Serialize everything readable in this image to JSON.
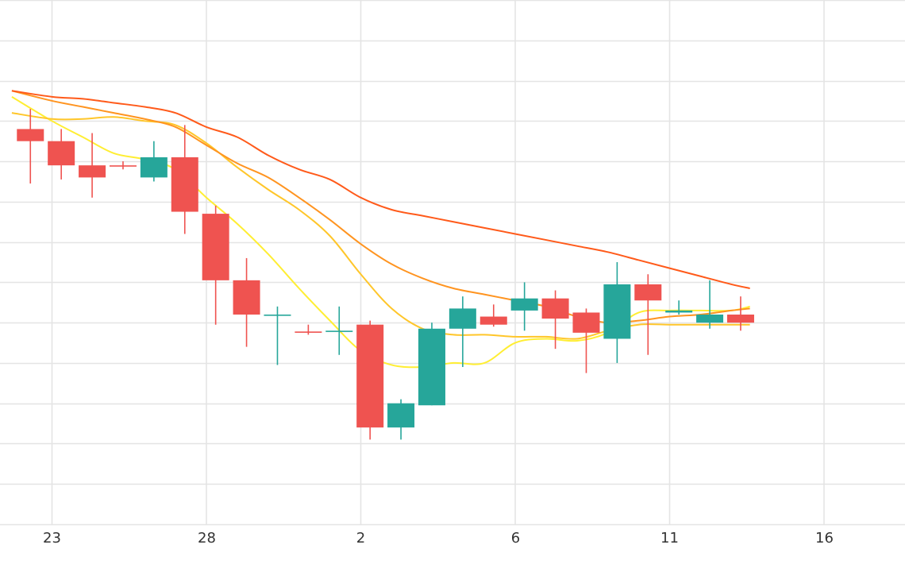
{
  "chart_data": {
    "type": "candlestick",
    "x_tick_labels": [
      "23",
      "28",
      "2",
      "6",
      "11",
      "16"
    ],
    "y_range": [
      0,
      13
    ],
    "grid": true,
    "colors": {
      "up": "#26a69a",
      "down": "#ef5350",
      "ma_lines": [
        "#ffee33",
        "#ffc62a",
        "#ff9420",
        "#ff5a1a"
      ]
    },
    "candles": [
      {
        "x": -0.7,
        "open": 9.8,
        "close": 9.5,
        "high": 10.3,
        "low": 8.45
      },
      {
        "x": 0.3,
        "open": 9.5,
        "close": 8.9,
        "high": 9.8,
        "low": 8.55
      },
      {
        "x": 1.3,
        "open": 8.9,
        "close": 8.6,
        "high": 9.7,
        "low": 8.1
      },
      {
        "x": 2.3,
        "open": 8.9,
        "close": 8.88,
        "high": 9.0,
        "low": 8.8
      },
      {
        "x": 3.3,
        "open": 8.6,
        "close": 9.1,
        "high": 9.5,
        "low": 8.5
      },
      {
        "x": 4.3,
        "open": 9.1,
        "close": 7.75,
        "high": 9.9,
        "low": 7.2
      },
      {
        "x": 5.3,
        "open": 7.7,
        "close": 6.05,
        "high": 7.9,
        "low": 4.95
      },
      {
        "x": 6.3,
        "open": 6.05,
        "close": 5.2,
        "high": 6.6,
        "low": 4.4
      },
      {
        "x": 7.3,
        "open": 5.2,
        "close": 5.2,
        "high": 5.4,
        "low": 3.95
      },
      {
        "x": 8.3,
        "open": 4.78,
        "close": 4.77,
        "high": 4.95,
        "low": 4.7
      },
      {
        "x": 9.3,
        "open": 4.8,
        "close": 4.8,
        "high": 5.4,
        "low": 4.2
      },
      {
        "x": 10.3,
        "open": 4.95,
        "close": 2.4,
        "high": 5.05,
        "low": 2.1
      },
      {
        "x": 11.3,
        "open": 2.4,
        "close": 3.0,
        "high": 3.1,
        "low": 2.1
      },
      {
        "x": 12.3,
        "open": 2.95,
        "close": 4.85,
        "high": 5.0,
        "low": 2.95
      },
      {
        "x": 13.3,
        "open": 4.85,
        "close": 5.35,
        "high": 5.65,
        "low": 3.9
      },
      {
        "x": 14.3,
        "open": 5.15,
        "close": 4.95,
        "high": 5.45,
        "low": 4.9
      },
      {
        "x": 15.3,
        "open": 5.3,
        "close": 5.6,
        "high": 6.0,
        "low": 4.8
      },
      {
        "x": 16.3,
        "open": 5.6,
        "close": 5.1,
        "high": 5.8,
        "low": 4.35
      },
      {
        "x": 17.3,
        "open": 5.25,
        "close": 4.75,
        "high": 5.35,
        "low": 3.75
      },
      {
        "x": 18.3,
        "open": 4.6,
        "close": 5.95,
        "high": 6.5,
        "low": 4.0
      },
      {
        "x": 19.3,
        "open": 5.95,
        "close": 5.55,
        "high": 6.2,
        "low": 4.2
      },
      {
        "x": 20.3,
        "open": 5.25,
        "close": 5.3,
        "high": 5.55,
        "low": 5.2
      },
      {
        "x": 21.3,
        "open": 5.0,
        "close": 5.2,
        "high": 6.05,
        "low": 4.85
      },
      {
        "x": 22.3,
        "open": 5.2,
        "close": 5.0,
        "high": 5.65,
        "low": 4.8
      }
    ],
    "series": [
      {
        "x": [
          -1.3,
          0,
          1,
          2,
          3,
          4,
          5,
          6,
          7,
          8,
          9,
          10,
          11,
          12,
          13,
          14,
          15,
          16,
          17,
          18,
          19,
          20,
          21,
          22,
          22.6
        ],
        "values": [
          10.6,
          10.0,
          9.6,
          9.2,
          9.05,
          8.8,
          8.1,
          7.45,
          6.7,
          5.85,
          5.05,
          4.3,
          3.95,
          3.9,
          4.0,
          4.0,
          4.5,
          4.6,
          4.55,
          4.75,
          5.25,
          5.3,
          5.3,
          5.3,
          5.4
        ]
      },
      {
        "x": [
          -1.3,
          0,
          1,
          2,
          3,
          4,
          5,
          6,
          7,
          8,
          9,
          10,
          11,
          12,
          13,
          14,
          15,
          16,
          17,
          18,
          19,
          20,
          21,
          22,
          22.6
        ],
        "values": [
          10.2,
          10.05,
          10.05,
          10.1,
          10.0,
          9.9,
          9.45,
          8.85,
          8.3,
          7.8,
          7.15,
          6.2,
          5.35,
          4.85,
          4.7,
          4.7,
          4.65,
          4.65,
          4.6,
          4.8,
          4.95,
          4.95,
          4.95,
          4.95,
          4.95
        ]
      },
      {
        "x": [
          -1.3,
          0,
          1,
          2,
          3,
          4,
          5,
          6,
          7,
          8,
          9,
          10,
          11,
          12,
          13,
          14,
          15,
          16,
          17,
          18,
          19,
          20,
          21,
          22,
          22.6
        ],
        "values": [
          10.75,
          10.5,
          10.35,
          10.2,
          10.05,
          9.85,
          9.4,
          8.95,
          8.6,
          8.1,
          7.55,
          6.95,
          6.45,
          6.1,
          5.85,
          5.7,
          5.55,
          5.4,
          5.15,
          5.0,
          5.05,
          5.15,
          5.2,
          5.3,
          5.35
        ]
      },
      {
        "x": [
          -1.3,
          0,
          1,
          2,
          3,
          4,
          5,
          6,
          7,
          8,
          9,
          10,
          11,
          12,
          13,
          14,
          15,
          16,
          17,
          18,
          19,
          20,
          21,
          22,
          22.6
        ],
        "values": [
          10.75,
          10.6,
          10.55,
          10.45,
          10.35,
          10.2,
          9.85,
          9.6,
          9.15,
          8.8,
          8.55,
          8.1,
          7.8,
          7.65,
          7.5,
          7.35,
          7.2,
          7.05,
          6.9,
          6.75,
          6.55,
          6.35,
          6.15,
          5.95,
          5.85
        ]
      }
    ]
  }
}
